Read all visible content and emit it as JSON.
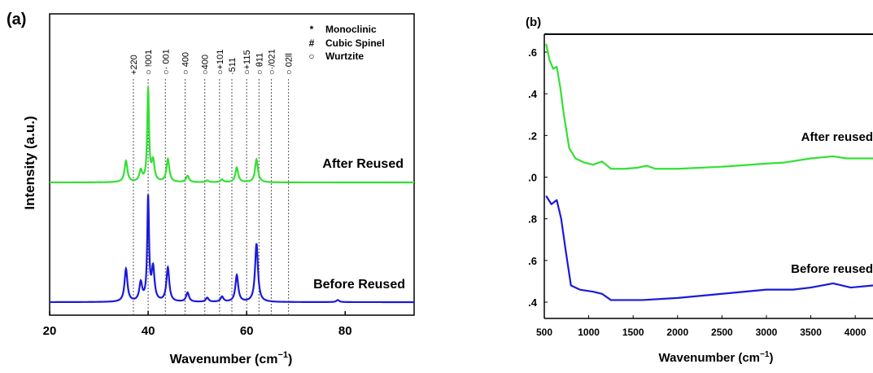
{
  "chart_data": [
    {
      "type": "line",
      "panel_label": "(a)",
      "xlabel_main": "Wavenumber (cm",
      "xlabel_sup": "−1",
      "xlabel_close": ")",
      "ylabel": "Intensity (a.u.)",
      "xlim": [
        20,
        94
      ],
      "xticks": [
        20,
        40,
        60,
        80
      ],
      "grid": false,
      "legend_position": "top-right",
      "legend": [
        {
          "symbol": "*",
          "label": "Monoclinic"
        },
        {
          "symbol": "#",
          "label": "Cubic Spinel"
        },
        {
          "symbol": "○",
          "label": "Wurtzite"
        }
      ],
      "reference_lines": [
        {
          "x": 37.0,
          "label": "+220"
        },
        {
          "x": 40.0,
          "label": "○ !001"
        },
        {
          "x": 43.5,
          "label": "○· 001"
        },
        {
          "x": 47.5,
          "label": "○ 400"
        },
        {
          "x": 51.5,
          "label": "○400"
        },
        {
          "x": 54.5,
          "label": "○+101"
        },
        {
          "x": 57.0,
          "label": "·511"
        },
        {
          "x": 60.0,
          "label": "○+115"
        },
        {
          "x": 62.5,
          "label": "○ θ11"
        },
        {
          "x": 65.0,
          "label": "○·/021"
        },
        {
          "x": 68.5,
          "label": "○ 02ll"
        }
      ],
      "series": [
        {
          "name": "After Reused",
          "color": "#33e033",
          "peaks": [
            [
              35.5,
              0.23
            ],
            [
              38.5,
              0.12
            ],
            [
              40.0,
              1.0
            ],
            [
              41.0,
              0.22
            ],
            [
              44.0,
              0.25
            ],
            [
              48.0,
              0.07
            ],
            [
              52.0,
              0.02
            ],
            [
              55.0,
              0.03
            ],
            [
              58.0,
              0.16
            ],
            [
              62.0,
              0.25
            ]
          ]
        },
        {
          "name": "Before Reused",
          "color": "#1a1adb",
          "peaks": [
            [
              35.5,
              0.32
            ],
            [
              38.5,
              0.18
            ],
            [
              40.0,
              1.0
            ],
            [
              41.0,
              0.32
            ],
            [
              44.0,
              0.33
            ],
            [
              48.0,
              0.09
            ],
            [
              52.0,
              0.04
            ],
            [
              55.0,
              0.05
            ],
            [
              58.0,
              0.26
            ],
            [
              62.0,
              0.57
            ],
            [
              78.5,
              0.02
            ]
          ]
        }
      ]
    },
    {
      "type": "line",
      "panel_label": "(b)",
      "xlabel_main": "Wavenumber (cm",
      "xlabel_sup": "−1",
      "xlabel_close": ")",
      "xlim": [
        500,
        4200
      ],
      "xticks": [
        500,
        1000,
        1500,
        2000,
        2500,
        3000,
        3500,
        4000
      ],
      "tick_labels": [
        ".4",
        ".6",
        ".8",
        ".0",
        ".2",
        ".4",
        ".6"
      ],
      "grid": false,
      "series": [
        {
          "name": "After reused",
          "color": "#33e033",
          "points": [
            [
              520,
              1.64
            ],
            [
              560,
              1.56
            ],
            [
              600,
              1.52
            ],
            [
              640,
              1.53
            ],
            [
              680,
              1.43
            ],
            [
              720,
              1.3
            ],
            [
              780,
              1.14
            ],
            [
              850,
              1.09
            ],
            [
              950,
              1.07
            ],
            [
              1050,
              1.06
            ],
            [
              1150,
              1.075
            ],
            [
              1250,
              1.04
            ],
            [
              1400,
              1.04
            ],
            [
              1550,
              1.045
            ],
            [
              1650,
              1.055
            ],
            [
              1750,
              1.04
            ],
            [
              2000,
              1.04
            ],
            [
              2500,
              1.05
            ],
            [
              3000,
              1.065
            ],
            [
              3200,
              1.07
            ],
            [
              3500,
              1.09
            ],
            [
              3750,
              1.1
            ],
            [
              3900,
              1.09
            ],
            [
              4200,
              1.09
            ]
          ]
        },
        {
          "name": "Before reused",
          "color": "#1a1adb",
          "points": [
            [
              520,
              0.91
            ],
            [
              580,
              0.87
            ],
            [
              640,
              0.89
            ],
            [
              690,
              0.8
            ],
            [
              740,
              0.65
            ],
            [
              800,
              0.48
            ],
            [
              900,
              0.46
            ],
            [
              1050,
              0.45
            ],
            [
              1150,
              0.44
            ],
            [
              1250,
              0.41
            ],
            [
              1400,
              0.41
            ],
            [
              1600,
              0.41
            ],
            [
              2000,
              0.42
            ],
            [
              2500,
              0.44
            ],
            [
              3000,
              0.46
            ],
            [
              3300,
              0.46
            ],
            [
              3500,
              0.47
            ],
            [
              3750,
              0.49
            ],
            [
              3950,
              0.47
            ],
            [
              4200,
              0.48
            ]
          ]
        }
      ]
    }
  ]
}
